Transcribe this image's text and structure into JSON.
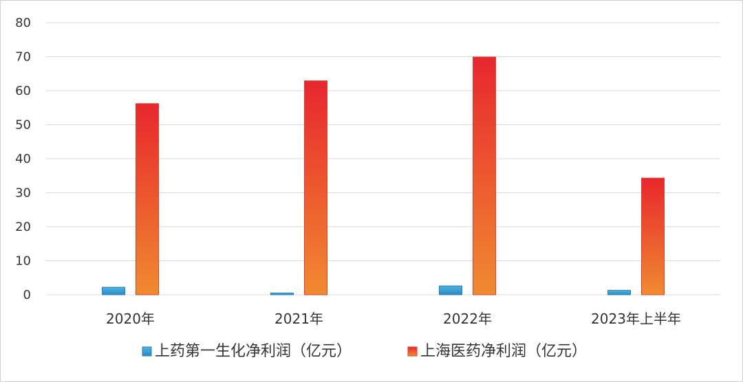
{
  "chart_data": {
    "type": "bar",
    "categories": [
      "2020年",
      "2021年",
      "2022年",
      "2023年上半年"
    ],
    "series": [
      {
        "name": "上药第一生化净利润（亿元）",
        "values": [
          2.2,
          0.5,
          2.6,
          1.3
        ],
        "color_top": "#4fb3e0",
        "color_bottom": "#2a8ac6"
      },
      {
        "name": "上海医药净利润（亿元）",
        "values": [
          56.2,
          62.9,
          69.9,
          34.3
        ],
        "color_top": "#e8262e",
        "color_bottom": "#f08a30"
      }
    ],
    "ylim": [
      0,
      80
    ],
    "yticks": [
      0,
      10,
      20,
      30,
      40,
      50,
      60,
      70,
      80
    ],
    "grid": true,
    "legend_position": "bottom"
  }
}
